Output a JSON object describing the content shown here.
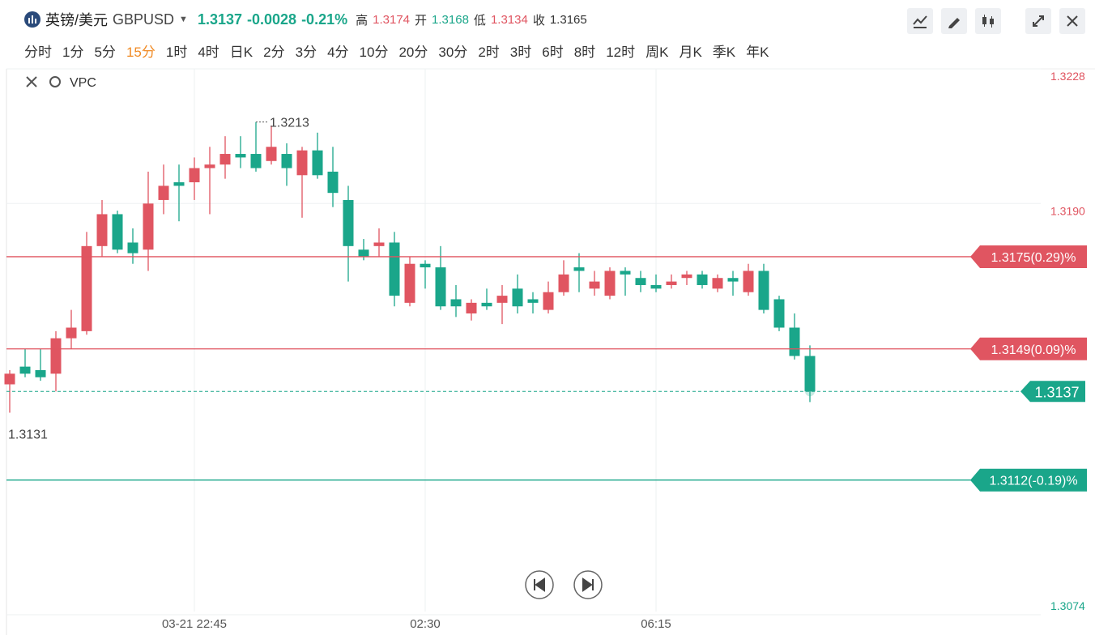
{
  "header": {
    "name": "英镑/美元",
    "symbol": "GBPUSD",
    "price": "1.3137",
    "change": "-0.0028",
    "change_pct": "-0.21%",
    "high_label": "高",
    "high": "1.3174",
    "open_label": "开",
    "open": "1.3168",
    "low_label": "低",
    "low": "1.3134",
    "close_label": "收",
    "close": "1.3165"
  },
  "timeframes": [
    "分时",
    "1分",
    "5分",
    "15分",
    "1时",
    "4时",
    "日K",
    "2分",
    "3分",
    "4分",
    "10分",
    "20分",
    "30分",
    "2时",
    "3时",
    "6时",
    "8时",
    "12时",
    "周K",
    "月K",
    "季K",
    "年K"
  ],
  "active_timeframe": 3,
  "indicator": "VPC",
  "chart_data": {
    "type": "candlestick",
    "categories": [
      null,
      null,
      null,
      null,
      null,
      null,
      null,
      null,
      null,
      null,
      null,
      null,
      "03-21 22:45",
      null,
      null,
      null,
      null,
      null,
      null,
      null,
      null,
      null,
      null,
      null,
      null,
      null,
      null,
      "02:30",
      null,
      null,
      null,
      null,
      null,
      null,
      null,
      null,
      null,
      null,
      null,
      null,
      null,
      null,
      "06:15",
      null,
      null,
      null,
      null,
      null,
      null,
      null,
      null,
      null,
      null
    ],
    "open": [
      1.3139,
      1.3144,
      1.3143,
      1.3142,
      1.3152,
      1.3154,
      1.3178,
      1.3187,
      1.3179,
      1.3177,
      1.3191,
      1.3196,
      1.3196,
      1.32,
      1.3201,
      1.3204,
      1.3204,
      1.3202,
      1.3204,
      1.3198,
      1.3205,
      1.3199,
      1.3191,
      1.3177,
      1.3178,
      1.3179,
      1.3162,
      1.3173,
      1.3172,
      1.3163,
      1.3159,
      1.3162,
      1.3162,
      1.3166,
      1.3163,
      1.316,
      1.3165,
      1.3172,
      1.3166,
      1.3164,
      1.3171,
      1.3169,
      1.3167,
      1.3167,
      1.3169,
      1.317,
      1.3166,
      1.3169,
      1.3165,
      1.3171,
      1.3163,
      1.3155,
      1.3147
    ],
    "close": [
      1.3142,
      1.3142,
      1.3141,
      1.3152,
      1.3155,
      1.3178,
      1.3187,
      1.3177,
      1.3176,
      1.319,
      1.3195,
      1.3195,
      1.32,
      1.3201,
      1.3204,
      1.3203,
      1.32,
      1.3206,
      1.32,
      1.3205,
      1.3198,
      1.3193,
      1.3178,
      1.3175,
      1.3179,
      1.3164,
      1.3173,
      1.3172,
      1.3161,
      1.3161,
      1.3162,
      1.3161,
      1.3164,
      1.3161,
      1.3162,
      1.3165,
      1.317,
      1.3171,
      1.3168,
      1.3171,
      1.317,
      1.3167,
      1.3166,
      1.3168,
      1.317,
      1.3167,
      1.3169,
      1.3168,
      1.3171,
      1.316,
      1.3155,
      1.3147,
      1.3137
    ],
    "high": [
      1.3143,
      1.3149,
      1.3149,
      1.3154,
      1.316,
      1.3182,
      1.3191,
      1.3188,
      1.3183,
      1.3199,
      1.3201,
      1.3201,
      1.3203,
      1.3206,
      1.3209,
      1.3209,
      1.3213,
      1.3212,
      1.3207,
      1.3206,
      1.321,
      1.3206,
      1.3195,
      1.318,
      1.3183,
      1.3182,
      1.3175,
      1.3174,
      1.3178,
      1.3167,
      1.3163,
      1.3166,
      1.3167,
      1.317,
      1.3165,
      1.3168,
      1.3174,
      1.3176,
      1.3171,
      1.3172,
      1.3172,
      1.3171,
      1.317,
      1.317,
      1.3171,
      1.3171,
      1.317,
      1.3171,
      1.3173,
      1.3173,
      1.3164,
      1.3159,
      1.315
    ],
    "low": [
      1.3131,
      1.3141,
      1.314,
      1.3137,
      1.3149,
      1.3153,
      1.3175,
      1.3176,
      1.3173,
      1.3171,
      1.3187,
      1.3185,
      1.3191,
      1.3187,
      1.3197,
      1.32,
      1.3199,
      1.3201,
      1.3195,
      1.3186,
      1.3197,
      1.3189,
      1.3168,
      1.3174,
      1.3175,
      1.3161,
      1.3161,
      1.3166,
      1.316,
      1.3158,
      1.3157,
      1.316,
      1.3156,
      1.3159,
      1.3159,
      1.3159,
      1.3164,
      1.3165,
      1.3164,
      1.3163,
      1.3164,
      1.3165,
      1.3165,
      1.3166,
      1.3167,
      1.3166,
      1.3165,
      1.3164,
      1.3164,
      1.3159,
      1.3154,
      1.3146,
      1.3134
    ],
    "up_color": "#e05561",
    "down_color": "#1aa68a",
    "ylim": [
      1.3074,
      1.3228
    ],
    "yticks": [
      1.3228,
      {
        "value": 1.319,
        "label": "1.3190"
      },
      1.3074
    ],
    "grid": true,
    "max_label": 1.3213,
    "min_label": 1.3131,
    "current_price": 1.3137,
    "price_lines": [
      {
        "value": 1.3175,
        "label": "1.3175(0.29)%",
        "color": "#e05561"
      },
      {
        "value": 1.3149,
        "label": "1.3149(0.09)%",
        "color": "#e05561"
      },
      {
        "value": 1.3112,
        "label": "1.3112(-0.19)%",
        "color": "#1aa68a"
      }
    ]
  }
}
